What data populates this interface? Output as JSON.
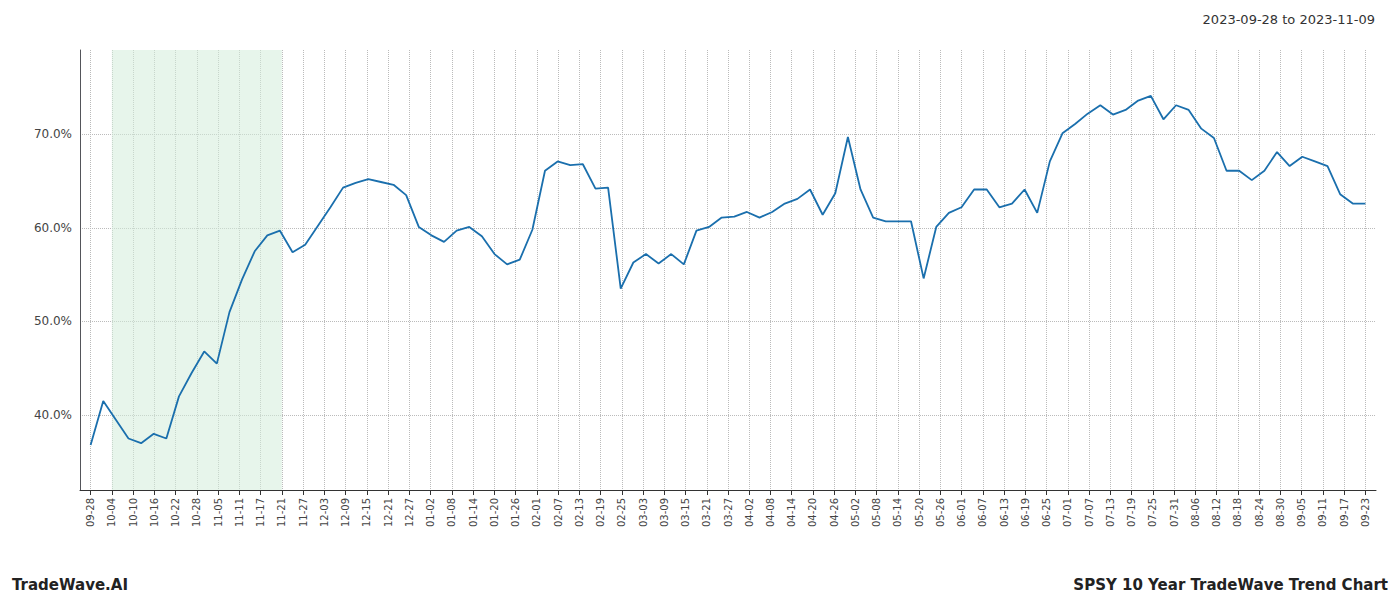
{
  "chart_data": {
    "type": "line",
    "title": "2023-09-28 to 2023-11-09",
    "annotations": [
      "TradeWave.AI",
      "SPSY 10 Year TradeWave Trend Chart"
    ],
    "color": "#1a6fad",
    "grid": true,
    "highlight": {
      "start": 1,
      "end": 9,
      "color": "#d4edda"
    },
    "xlim": [
      -0.5,
      60.5
    ],
    "xticks": [
      {
        "value": 0,
        "label": "09-28"
      },
      {
        "value": 1,
        "label": "10-04"
      },
      {
        "value": 2,
        "label": "10-10"
      },
      {
        "value": 3,
        "label": "10-16"
      },
      {
        "value": 4,
        "label": "10-22"
      },
      {
        "value": 5,
        "label": "10-28"
      },
      {
        "value": 6,
        "label": "11-05"
      },
      {
        "value": 7,
        "label": "11-11"
      },
      {
        "value": 8,
        "label": "11-17"
      },
      {
        "value": 9,
        "label": "11-21"
      },
      {
        "value": 10,
        "label": "11-27"
      },
      {
        "value": 11,
        "label": "12-03"
      },
      {
        "value": 12,
        "label": "12-09"
      },
      {
        "value": 13,
        "label": "12-15"
      },
      {
        "value": 14,
        "label": "12-21"
      },
      {
        "value": 15,
        "label": "12-27"
      },
      {
        "value": 16,
        "label": "01-02"
      },
      {
        "value": 17,
        "label": "01-08"
      },
      {
        "value": 18,
        "label": "01-14"
      },
      {
        "value": 19,
        "label": "01-20"
      },
      {
        "value": 20,
        "label": "01-26"
      },
      {
        "value": 21,
        "label": "02-01"
      },
      {
        "value": 22,
        "label": "02-07"
      },
      {
        "value": 23,
        "label": "02-13"
      },
      {
        "value": 24,
        "label": "02-19"
      },
      {
        "value": 25,
        "label": "02-25"
      },
      {
        "value": 26,
        "label": "03-03"
      },
      {
        "value": 27,
        "label": "03-09"
      },
      {
        "value": 28,
        "label": "03-15"
      },
      {
        "value": 29,
        "label": "03-21"
      },
      {
        "value": 30,
        "label": "03-27"
      },
      {
        "value": 31,
        "label": "04-02"
      },
      {
        "value": 32,
        "label": "04-08"
      },
      {
        "value": 33,
        "label": "04-14"
      },
      {
        "value": 34,
        "label": "04-20"
      },
      {
        "value": 35,
        "label": "04-26"
      },
      {
        "value": 36,
        "label": "05-02"
      },
      {
        "value": 37,
        "label": "05-08"
      },
      {
        "value": 38,
        "label": "05-14"
      },
      {
        "value": 39,
        "label": "05-20"
      },
      {
        "value": 40,
        "label": "05-26"
      },
      {
        "value": 41,
        "label": "06-01"
      },
      {
        "value": 42,
        "label": "06-07"
      },
      {
        "value": 43,
        "label": "06-13"
      },
      {
        "value": 44,
        "label": "06-19"
      },
      {
        "value": 45,
        "label": "06-25"
      },
      {
        "value": 46,
        "label": "07-01"
      },
      {
        "value": 47,
        "label": "07-07"
      },
      {
        "value": 48,
        "label": "07-13"
      },
      {
        "value": 49,
        "label": "07-19"
      },
      {
        "value": 50,
        "label": "07-25"
      },
      {
        "value": 51,
        "label": "07-31"
      },
      {
        "value": 52,
        "label": "08-06"
      },
      {
        "value": 53,
        "label": "08-12"
      },
      {
        "value": 54,
        "label": "08-18"
      },
      {
        "value": 55,
        "label": "08-24"
      },
      {
        "value": 56,
        "label": "08-30"
      },
      {
        "value": 57,
        "label": "09-05"
      },
      {
        "value": 58,
        "label": "09-11"
      },
      {
        "value": 59,
        "label": "09-17"
      },
      {
        "value": 60,
        "label": "09-23"
      }
    ],
    "ylim": [
      0.32,
      0.79
    ],
    "yticks": [
      {
        "value": 0.4,
        "label": "40.0%"
      },
      {
        "value": 0.5,
        "label": "50.0%"
      },
      {
        "value": 0.6,
        "label": "60.0%"
      },
      {
        "value": 0.7,
        "label": "70.0%"
      }
    ],
    "x": [
      0,
      0.594059,
      1.188119,
      1.782178,
      2.376238,
      2.970297,
      3.564356,
      4.158416,
      4.752475,
      5.346535,
      5.940594,
      6.534653,
      7.128713,
      7.722772,
      8.316832,
      8.910891,
      9.50495,
      10.09901,
      10.693069,
      11.287129,
      11.881188,
      12.475248,
      13.069307,
      13.663366,
      14.257426,
      14.851485,
      15.445545,
      16.039604,
      16.633663,
      17.227723,
      17.821782,
      18.415842,
      19.009901,
      19.60396,
      20.19802,
      20.792079,
      21.386139,
      21.980198,
      22.574257,
      23.168317,
      23.762376,
      24.356436,
      24.950495,
      25.544554,
      26.138614,
      26.732673,
      27.326733,
      27.920792,
      28.514851,
      29.108911,
      29.70297,
      30.29703,
      30.891089,
      31.485149,
      32.079208,
      32.673267,
      33.267327,
      33.861386,
      34.455446,
      35.049505,
      35.643564,
      36.237624,
      36.831683,
      37.425743,
      38.019802,
      38.613861,
      39.207921,
      39.80198,
      40.39604,
      40.990099,
      41.584158,
      42.178218,
      42.772277,
      43.366337,
      43.960396,
      44.554455,
      45.148515,
      45.742574,
      46.336634,
      46.930693,
      47.524752,
      48.118812,
      48.712871,
      49.306931,
      49.90099,
      50.49505,
      51.089109,
      51.683168,
      52.277228,
      52.871287,
      53.465347,
      54.059406,
      54.653465,
      55.247525,
      55.841584,
      56.435644,
      57.029703,
      57.623762,
      58.217822,
      58.811881,
      59.405941,
      60
    ],
    "values": [
      0.368,
      0.415,
      0.395,
      0.375,
      0.37,
      0.38,
      0.375,
      0.42,
      0.445,
      0.468,
      0.455,
      0.51,
      0.545,
      0.575,
      0.592,
      0.597,
      0.574,
      0.582,
      0.602,
      0.622,
      0.643,
      0.648,
      0.652,
      0.649,
      0.646,
      0.635,
      0.601,
      0.592,
      0.585,
      0.597,
      0.601,
      0.591,
      0.572,
      0.561,
      0.566,
      0.598,
      0.661,
      0.671,
      0.667,
      0.668,
      0.642,
      0.643,
      0.535,
      0.563,
      0.572,
      0.562,
      0.572,
      0.561,
      0.597,
      0.601,
      0.611,
      0.612,
      0.617,
      0.611,
      0.617,
      0.626,
      0.631,
      0.641,
      0.614,
      0.637,
      0.697,
      0.641,
      0.611,
      0.607,
      0.607,
      0.607,
      0.546,
      0.601,
      0.616,
      0.622,
      0.641,
      0.641,
      0.622,
      0.626,
      0.641,
      0.616,
      0.671,
      0.701,
      0.711,
      0.722,
      0.731,
      0.721,
      0.726,
      0.736,
      0.741,
      0.716,
      0.731,
      0.726,
      0.706,
      0.696,
      0.661,
      0.661,
      0.651,
      0.661,
      0.681,
      0.666,
      0.676,
      0.671,
      0.666,
      0.636,
      0.626,
      0.626
    ]
  }
}
